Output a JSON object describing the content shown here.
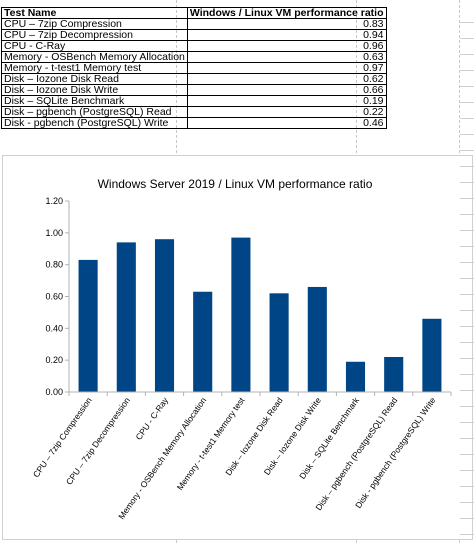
{
  "table": {
    "headers": [
      "Test Name",
      "Windows / Linux VM performance ratio"
    ],
    "rows": [
      {
        "name": "CPU – 7zip Compression",
        "value": "0.83"
      },
      {
        "name": "CPU – 7zip Decompression",
        "value": "0.94"
      },
      {
        "name": "CPU - C-Ray",
        "value": "0.96"
      },
      {
        "name": "Memory - OSBench Memory Allocation",
        "value": "0.63"
      },
      {
        "name": "Memory - t-test1 Memory test",
        "value": "0.97"
      },
      {
        "name": "Disk – Iozone Disk Read",
        "value": "0.62"
      },
      {
        "name": "Disk – Iozone Disk Write",
        "value": "0.66"
      },
      {
        "name": "Disk – SQLite Benchmark",
        "value": "0.19"
      },
      {
        "name": "Disk – pgbench (PostgreSQL) Read",
        "value": "0.22"
      },
      {
        "name": "Disk - pgbench (PostgreSQL) Write",
        "value": "0.46"
      }
    ]
  },
  "chart_data": {
    "type": "bar",
    "title": "Windows Server 2019 / Linux VM performance ratio",
    "categories": [
      "CPU – 7zip Compression",
      "CPU – 7zip Decompression",
      "CPU - C-Ray",
      "Memory - OSBench Memory Allocation",
      "Memory - t-test1 Memory test",
      "Disk – Iozone Disk Read",
      "Disk – Iozone Disk Write",
      "Disk – SQLite Benchmark",
      "Disk – pgbench (PostgreSQL) Read",
      "Disk - pgbench (PostgreSQL) Write"
    ],
    "values": [
      0.83,
      0.94,
      0.96,
      0.63,
      0.97,
      0.62,
      0.66,
      0.19,
      0.22,
      0.46
    ],
    "ylim": [
      0,
      1.2
    ],
    "yticks": [
      "0.00",
      "0.20",
      "0.40",
      "0.60",
      "0.80",
      "1.00",
      "1.20"
    ],
    "xlabel": "",
    "ylabel": "",
    "grid": false,
    "legend": "none",
    "bar_color": "#004586"
  }
}
